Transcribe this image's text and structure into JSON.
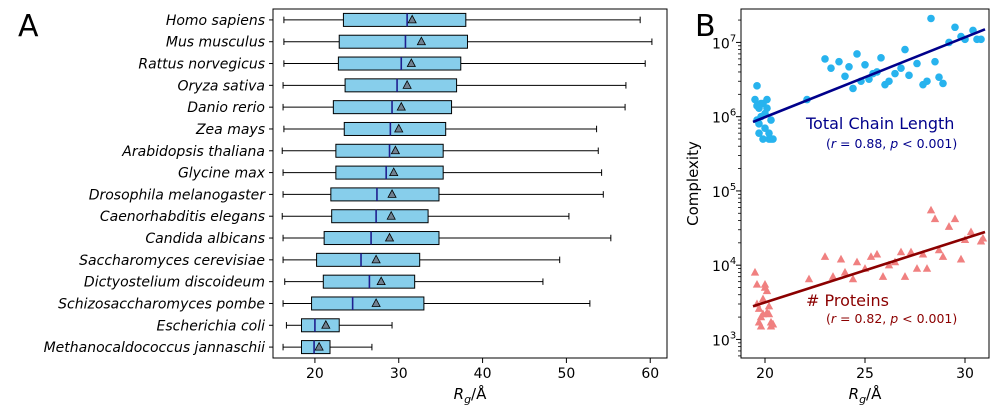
{
  "panels": {
    "a_letter": "A",
    "b_letter": "B"
  },
  "chart_data": [
    {
      "type": "boxplot",
      "orientation": "horizontal",
      "xlabel_main": "R",
      "xlabel_sub": "g",
      "xlabel_unit": "/Å",
      "xlim": [
        15,
        62
      ],
      "xticks": [
        20,
        30,
        40,
        50,
        60
      ],
      "colors": {
        "box": "#87ceeb",
        "median": "#1f1f8f",
        "mean": "#708090"
      },
      "categories": [
        "Homo sapiens",
        "Mus musculus",
        "Rattus norvegicus",
        "Oryza sativa",
        "Danio rerio",
        "Zea mays",
        "Arabidopsis thaliana",
        "Glycine max",
        "Drosophila melanogaster",
        "Caenorhabditis elegans",
        "Candida albicans",
        "Saccharomyces cerevisiae",
        "Dictyostelium discoideum",
        "Schizosaccharomyces pombe",
        "Escherichia coli",
        "Methanocaldococcus jannaschii"
      ],
      "boxes": [
        {
          "whislo": 16.3,
          "q1": 23.4,
          "med": 31.0,
          "q3": 38.0,
          "whishi": 58.8,
          "mean": 31.6
        },
        {
          "whislo": 16.3,
          "q1": 22.9,
          "med": 30.8,
          "q3": 38.2,
          "whishi": 60.2,
          "mean": 32.7
        },
        {
          "whislo": 16.3,
          "q1": 22.8,
          "med": 30.3,
          "q3": 37.4,
          "whishi": 59.4,
          "mean": 31.5
        },
        {
          "whislo": 16.2,
          "q1": 23.6,
          "med": 29.8,
          "q3": 36.9,
          "whishi": 57.1,
          "mean": 31.0
        },
        {
          "whislo": 16.2,
          "q1": 22.2,
          "med": 29.2,
          "q3": 36.3,
          "whishi": 57.0,
          "mean": 30.3
        },
        {
          "whislo": 16.3,
          "q1": 23.5,
          "med": 29.0,
          "q3": 35.6,
          "whishi": 53.6,
          "mean": 30.0
        },
        {
          "whislo": 16.1,
          "q1": 22.5,
          "med": 28.9,
          "q3": 35.3,
          "whishi": 53.8,
          "mean": 29.6
        },
        {
          "whislo": 16.2,
          "q1": 22.5,
          "med": 28.5,
          "q3": 35.3,
          "whishi": 54.2,
          "mean": 29.4
        },
        {
          "whislo": 16.2,
          "q1": 21.9,
          "med": 27.4,
          "q3": 34.8,
          "whishi": 54.4,
          "mean": 29.2
        },
        {
          "whislo": 16.1,
          "q1": 22.0,
          "med": 27.3,
          "q3": 33.5,
          "whishi": 50.3,
          "mean": 29.1
        },
        {
          "whislo": 16.2,
          "q1": 21.1,
          "med": 26.7,
          "q3": 34.8,
          "whishi": 55.3,
          "mean": 28.9
        },
        {
          "whislo": 16.2,
          "q1": 20.2,
          "med": 25.5,
          "q3": 32.5,
          "whishi": 49.2,
          "mean": 27.3
        },
        {
          "whislo": 16.4,
          "q1": 21.0,
          "med": 26.5,
          "q3": 31.9,
          "whishi": 47.2,
          "mean": 27.9
        },
        {
          "whislo": 16.2,
          "q1": 19.6,
          "med": 24.5,
          "q3": 33.0,
          "whishi": 52.8,
          "mean": 27.3
        },
        {
          "whislo": 16.6,
          "q1": 18.4,
          "med": 20.0,
          "q3": 22.9,
          "whishi": 29.2,
          "mean": 21.3
        },
        {
          "whislo": 16.2,
          "q1": 18.4,
          "med": 19.9,
          "q3": 21.8,
          "whishi": 26.8,
          "mean": 20.5
        }
      ]
    },
    {
      "type": "scatter",
      "yscale": "log",
      "xlabel_main": "R",
      "xlabel_sub": "g",
      "xlabel_unit": "/Å",
      "ylabel": "Complexity",
      "xlim": [
        18.8,
        31.2
      ],
      "ylim_log10": [
        2.75,
        7.45
      ],
      "xticks": [
        20,
        25,
        30
      ],
      "yticks_exp": [
        3,
        4,
        5,
        6,
        7
      ],
      "tick_base": "10",
      "series": [
        {
          "name": "Total Chain Length",
          "annotation": {
            "r": "0.88",
            "p": "0.001"
          },
          "color": "#27b3ee",
          "line_color": "#00008b",
          "marker": "circle",
          "fit": {
            "x": [
              19.4,
              31.0
            ],
            "y": [
              850000,
              15000000
            ]
          },
          "x": [
            19.5,
            19.6,
            19.6,
            19.7,
            19.7,
            19.8,
            19.9,
            19.9,
            20.0,
            20.0,
            20.1,
            20.1,
            20.2,
            20.2,
            20.3,
            20.3,
            20.4,
            19.8,
            19.7,
            19.6,
            22.1,
            23.0,
            23.3,
            23.7,
            24.0,
            24.2,
            24.4,
            24.6,
            24.8,
            25.0,
            25.2,
            25.4,
            25.6,
            25.8,
            26.0,
            26.2,
            26.5,
            26.8,
            27.0,
            27.2,
            27.6,
            27.9,
            28.1,
            28.3,
            28.5,
            28.7,
            28.9,
            29.2,
            29.5,
            29.8,
            30.0,
            30.4,
            30.6,
            30.8
          ],
          "y": [
            1700000,
            2600000,
            900000,
            1300000,
            600000,
            1000000,
            500000,
            1500000,
            1100000,
            700000,
            1700000,
            1300000,
            600000,
            500000,
            900000,
            500000,
            500000,
            1500000,
            800000,
            1400000,
            1700000,
            6000000,
            4500000,
            5500000,
            3500000,
            4700000,
            2400000,
            7000000,
            3000000,
            5000000,
            3200000,
            3800000,
            4000000,
            6200000,
            2700000,
            3000000,
            3800000,
            4500000,
            8000000,
            3600000,
            5200000,
            2700000,
            3000000,
            21000000,
            5500000,
            3400000,
            2800000,
            10000000,
            16000000,
            12000000,
            11000000,
            14500000,
            11000000,
            11000000
          ]
        },
        {
          "name": "# Proteins",
          "annotation": {
            "r": "0.82",
            "p": "0.001"
          },
          "color": "#f08080",
          "line_color": "#8b0000",
          "marker": "triangle",
          "fit": {
            "x": [
              19.4,
              31.0
            ],
            "y": [
              2800,
              28000
            ]
          },
          "x": [
            19.5,
            19.6,
            19.6,
            19.7,
            19.8,
            19.9,
            20.0,
            20.1,
            20.2,
            20.3,
            20.4,
            19.8,
            20.0,
            20.2,
            19.7,
            19.9,
            20.3,
            20.1,
            22.2,
            23.0,
            23.4,
            23.8,
            24.0,
            24.4,
            24.6,
            25.0,
            25.3,
            25.6,
            25.9,
            26.2,
            26.5,
            26.8,
            27.0,
            27.3,
            27.6,
            27.9,
            28.1,
            28.3,
            28.5,
            28.7,
            28.9,
            29.2,
            29.5,
            29.8,
            30.0,
            30.3,
            30.8,
            30.9
          ],
          "y": [
            8000,
            3000,
            5500,
            2600,
            1500,
            3500,
            5000,
            4500,
            2200,
            1700,
            1600,
            2000,
            5500,
            2800,
            1700,
            2200,
            1500,
            2300,
            6500,
            13000,
            7000,
            12000,
            8000,
            6500,
            11000,
            9000,
            13000,
            14000,
            7000,
            10000,
            11000,
            15000,
            7000,
            15000,
            9000,
            14000,
            9000,
            55000,
            42000,
            16000,
            13000,
            33000,
            42000,
            12000,
            22000,
            28000,
            21000,
            23000
          ]
        }
      ]
    }
  ]
}
